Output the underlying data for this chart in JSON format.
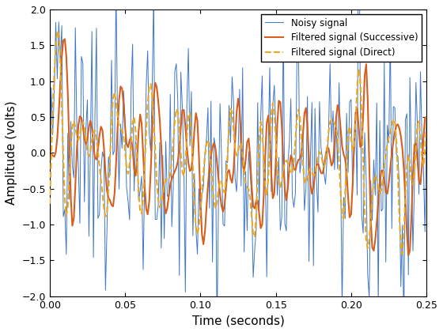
{
  "title": "",
  "xlabel": "Time (seconds)",
  "ylabel": "Amplitude (volts)",
  "xlim": [
    0,
    0.25
  ],
  "ylim": [
    -2,
    2
  ],
  "noisy_color": "#3e76c8",
  "successive_color": "#d45f1e",
  "direct_color": "#e8a820",
  "noisy_label": "Noisy signal",
  "successive_label": "Filtered signal (Successive)",
  "direct_label": "Filtered signal (Direct)",
  "fs": 1000,
  "duration": 0.25,
  "signal_freq": 50,
  "noise_std": 0.1,
  "background_color": "#ffffff",
  "legend_loc": "upper right"
}
